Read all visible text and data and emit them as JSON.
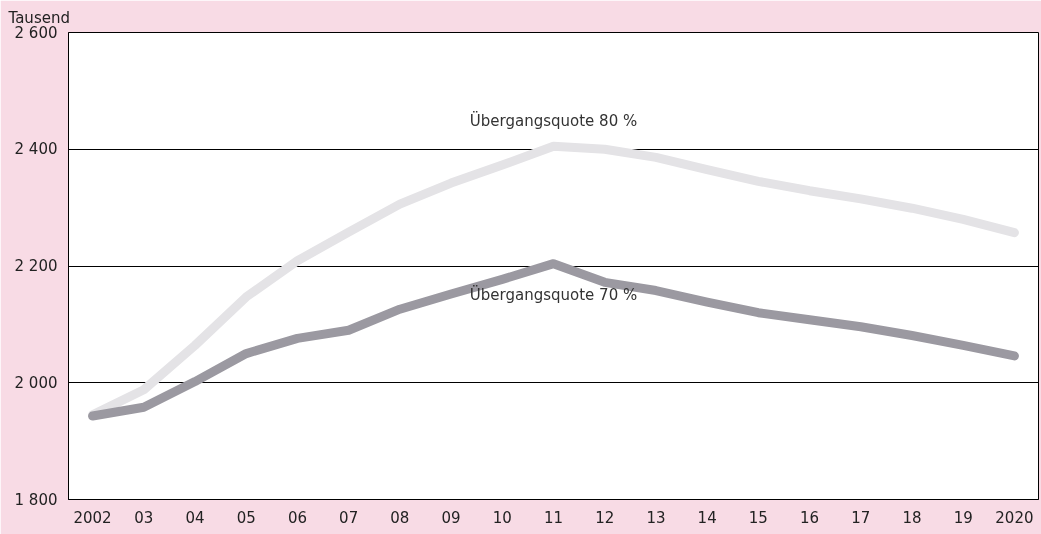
{
  "chart_data": {
    "type": "line",
    "ylabel": "Tausend",
    "x": [
      2002,
      2003,
      2004,
      2005,
      2006,
      2007,
      2008,
      2009,
      2010,
      2011,
      2012,
      2013,
      2014,
      2015,
      2016,
      2017,
      2018,
      2019,
      2020
    ],
    "series": [
      {
        "color": "#e4e3e6",
        "values": [
          1945,
          1988,
          2064,
          2147,
          2209,
          2258,
          2306,
          2342,
          2373,
          2405,
          2400,
          2386,
          2365,
          2345,
          2329,
          2315,
          2299,
          2280,
          2257
        ]
      },
      {
        "color": "#9b99a1",
        "values": [
          1943,
          1958,
          2002,
          2050,
          2076,
          2090,
          2126,
          2152,
          2177,
          2204,
          2172,
          2158,
          2138,
          2120,
          2108,
          2096,
          2081,
          2064,
          2046
        ]
      }
    ],
    "annotations": [
      {
        "text": "Übergangsquote 80 %",
        "x": 2011,
        "y": 2405
      },
      {
        "text": "Übergangsquote 70 %",
        "x": 2011,
        "y": 2204
      }
    ],
    "xlim": [
      2001.53,
      2020.47
    ],
    "xticks": [
      2002,
      {
        "value": 2003,
        "label": "03"
      },
      {
        "value": 2004,
        "label": "04"
      },
      {
        "value": 2005,
        "label": "05"
      },
      {
        "value": 2006,
        "label": "06"
      },
      {
        "value": 2007,
        "label": "07"
      },
      {
        "value": 2008,
        "label": "08"
      },
      {
        "value": 2009,
        "label": "09"
      },
      {
        "value": 2010,
        "label": "10"
      },
      {
        "value": 2011,
        "label": "11"
      },
      {
        "value": 2012,
        "label": "12"
      },
      {
        "value": 2013,
        "label": "13"
      },
      {
        "value": 2014,
        "label": "14"
      },
      {
        "value": 2015,
        "label": "15"
      },
      {
        "value": 2016,
        "label": "16"
      },
      {
        "value": 2017,
        "label": "17"
      },
      {
        "value": 2018,
        "label": "18"
      },
      {
        "value": 2019,
        "label": "19"
      },
      2020
    ],
    "ylim": [
      1800,
      2600
    ],
    "yticks": [
      {
        "value": 1800,
        "label": "1 800"
      },
      {
        "value": 2000,
        "label": "2 000"
      },
      {
        "value": 2200,
        "label": "2 200"
      },
      {
        "value": 2400,
        "label": "2 400"
      },
      {
        "value": 2600,
        "label": "2 600"
      }
    ],
    "grid": "y",
    "marker": "none",
    "line_style": "solid"
  }
}
